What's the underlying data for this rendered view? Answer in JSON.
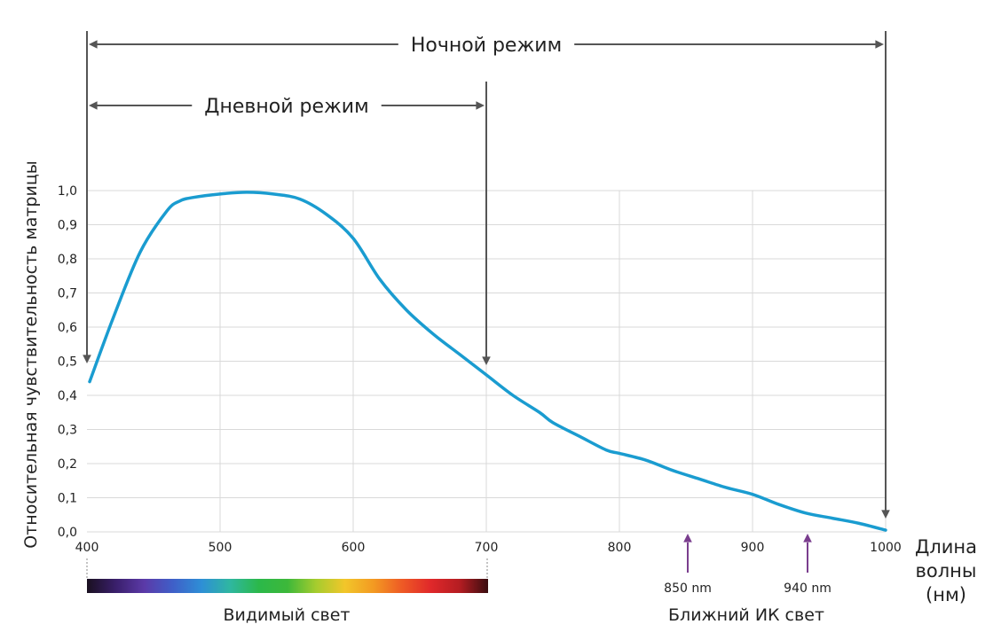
{
  "chart_data": {
    "type": "line",
    "ylabel": "Относительная чувствительность матрицы",
    "xlabel_lines": [
      "Длина",
      "волны",
      "(нм)"
    ],
    "xlim": [
      400,
      1000
    ],
    "ylim": [
      0,
      1.0
    ],
    "x_ticks": [
      400,
      500,
      600,
      700,
      800,
      900,
      1000
    ],
    "x_tick_labels": [
      "400",
      "500",
      "600",
      "700",
      "800",
      "900",
      "1000"
    ],
    "y_ticks": [
      0,
      0.1,
      0.2,
      0.3,
      0.4,
      0.5,
      0.6,
      0.7,
      0.8,
      0.9,
      1.0
    ],
    "y_tick_labels": [
      "0,0",
      "0,1",
      "0,2",
      "0,3",
      "0,4",
      "0,5",
      "0,6",
      "0,7",
      "0,8",
      "0,9",
      "1,0"
    ],
    "grid": true,
    "series": [
      {
        "color": "#1a9cd0",
        "x": [
          402,
          420,
          440,
          460,
          470,
          480,
          500,
          520,
          540,
          560,
          580,
          600,
          620,
          640,
          660,
          680,
          700,
          720,
          740,
          750,
          770,
          790,
          800,
          820,
          840,
          860,
          880,
          900,
          920,
          940,
          960,
          980,
          1000
        ],
        "y": [
          0.44,
          0.63,
          0.82,
          0.94,
          0.97,
          0.98,
          0.99,
          0.995,
          0.99,
          0.975,
          0.93,
          0.86,
          0.74,
          0.65,
          0.58,
          0.52,
          0.46,
          0.4,
          0.35,
          0.32,
          0.28,
          0.24,
          0.23,
          0.21,
          0.18,
          0.155,
          0.13,
          0.11,
          0.08,
          0.055,
          0.04,
          0.025,
          0.005
        ]
      }
    ],
    "modes": [
      {
        "label": "Ночной режим",
        "from": 400,
        "to": 1000,
        "color": "#555555"
      },
      {
        "label": "Дневной режим",
        "from": 400,
        "to": 700,
        "color": "#555555"
      }
    ],
    "markers": [
      {
        "x": 850,
        "label": "850 nm",
        "color": "#7a3e8e"
      },
      {
        "x": 940,
        "label": "940 nm",
        "color": "#7a3e8e"
      }
    ],
    "regions": [
      {
        "label": "Видимый свет",
        "from": 400,
        "to": 700
      },
      {
        "label": "Ближний ИК свет",
        "from": 700,
        "to": 1000
      }
    ],
    "spectrum_colors": [
      "#1a1020",
      "#3a1f6b",
      "#5b3aa8",
      "#3f5fc8",
      "#2e8fd6",
      "#2fb7a0",
      "#2bb84a",
      "#3db83a",
      "#a6cc2e",
      "#f2c62a",
      "#f39a22",
      "#ee5a25",
      "#e0282a",
      "#b51d22",
      "#3a0d10"
    ]
  }
}
